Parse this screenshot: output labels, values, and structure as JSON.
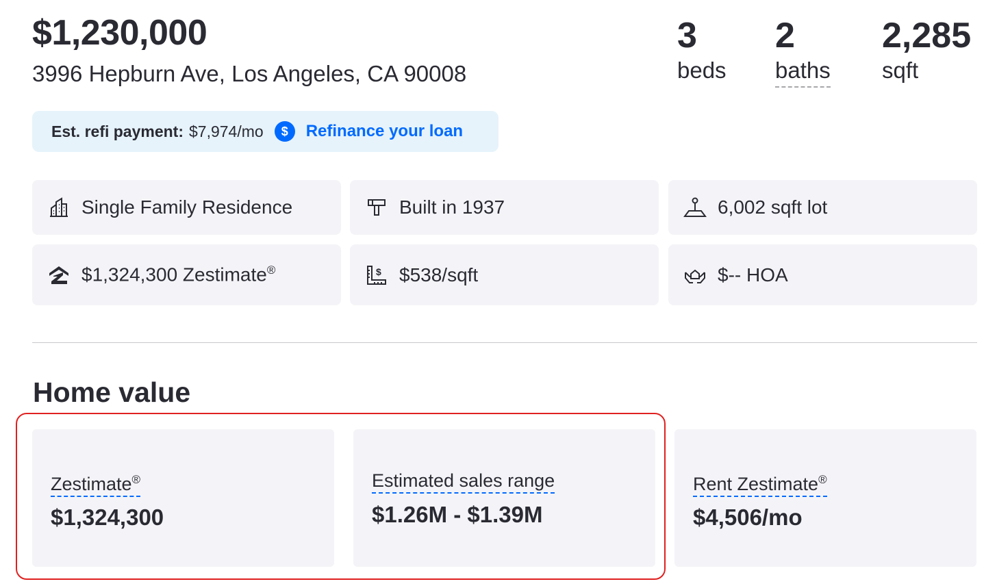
{
  "listing": {
    "price": "$1,230,000",
    "address": "3996 Hepburn Ave, Los Angeles, CA 90008"
  },
  "stats": {
    "beds": {
      "value": "3",
      "label": "beds"
    },
    "baths": {
      "value": "2",
      "label": "baths"
    },
    "sqft": {
      "value": "2,285",
      "label": "sqft"
    }
  },
  "refi": {
    "label": "Est. refi payment:",
    "value": "$7,974/mo",
    "link": "Refinance your loan",
    "accent": "#006aff",
    "bg": "#e6f3fb"
  },
  "facts": {
    "type": {
      "text": "Single Family Residence",
      "icon": "building-icon"
    },
    "built": {
      "text": "Built in 1937",
      "icon": "hammer-icon"
    },
    "lot": {
      "text": "6,002 sqft lot",
      "icon": "lot-icon"
    },
    "zestimate": {
      "text": "$1,324,300 Zestimate",
      "sup": "®",
      "icon": "zillow-logo-icon"
    },
    "price_sqft": {
      "text": "$538/sqft",
      "icon": "ruler-dollar-icon"
    },
    "hoa": {
      "text": "$-- HOA",
      "icon": "hands-house-icon"
    }
  },
  "home_value": {
    "title": "Home value",
    "cards": {
      "zestimate": {
        "label": "Zestimate",
        "sup": "®",
        "value": "$1,324,300"
      },
      "range": {
        "label": "Estimated sales range",
        "value": "$1.26M - $1.39M"
      },
      "rent": {
        "label": "Rent Zestimate",
        "sup": "®",
        "value": "$4,506/mo"
      }
    },
    "highlight_color": "#e02020"
  }
}
